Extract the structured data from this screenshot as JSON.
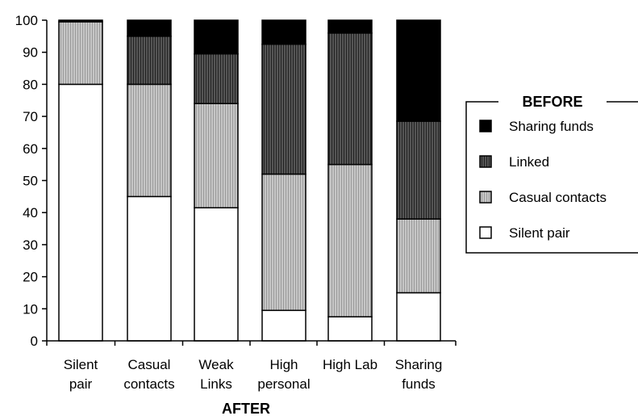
{
  "chart_data": {
    "type": "bar",
    "stacked": true,
    "title": "",
    "xlabel": "AFTER",
    "ylabel": "",
    "ylim": [
      0,
      100
    ],
    "yticks": [
      0,
      10,
      20,
      30,
      40,
      50,
      60,
      70,
      80,
      90,
      100
    ],
    "categories": [
      [
        "Silent",
        "pair"
      ],
      [
        "Casual",
        "contacts"
      ],
      [
        "Weak",
        "Links"
      ],
      [
        "High",
        "personal"
      ],
      [
        "High Lab"
      ],
      [
        "Sharing",
        "funds"
      ]
    ],
    "legend": {
      "title": "BEFORE",
      "placement": "right"
    },
    "series": [
      {
        "name": "Silent pair",
        "color": "#ffffff",
        "pattern": "none",
        "values": [
          80,
          45,
          41.5,
          9.5,
          7.5,
          15
        ]
      },
      {
        "name": "Casual contacts",
        "color": "#bdbdbd",
        "pattern": "light-hatch",
        "values": [
          19.5,
          35,
          32.5,
          42.5,
          47.5,
          23
        ]
      },
      {
        "name": "Linked",
        "color": "#4a4a4a",
        "pattern": "dark-hatch",
        "values": [
          0,
          15,
          15.5,
          40.5,
          41,
          30.5
        ]
      },
      {
        "name": "Sharing funds",
        "color": "#000000",
        "pattern": "none",
        "values": [
          0.5,
          5,
          10.5,
          7.5,
          4,
          31.5
        ]
      }
    ]
  }
}
